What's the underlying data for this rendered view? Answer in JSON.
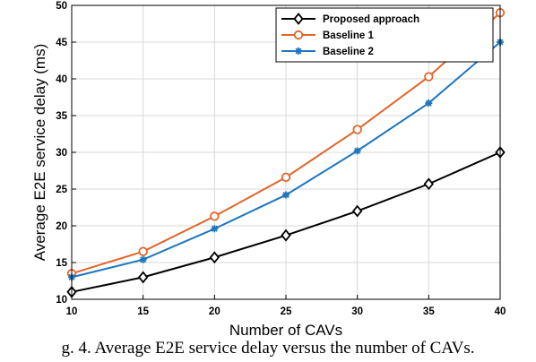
{
  "chart_data": {
    "type": "line",
    "xlabel": "Number of CAVs",
    "ylabel": "Average E2E service delay (ms)",
    "x": [
      10,
      15,
      20,
      25,
      30,
      35,
      40
    ],
    "xlim": [
      10,
      40
    ],
    "ylim": [
      10,
      50
    ],
    "xticks": [
      10,
      15,
      20,
      25,
      30,
      35,
      40
    ],
    "yticks": [
      10,
      15,
      20,
      25,
      30,
      35,
      40,
      45,
      50
    ],
    "grid": true,
    "legend_position": "top-right",
    "series": [
      {
        "name": "Proposed approach",
        "color": "#000000",
        "marker": "diamond",
        "values": [
          11.0,
          13.0,
          15.7,
          18.7,
          22.0,
          25.7,
          30.0
        ]
      },
      {
        "name": "Baseline 1",
        "color": "#e0662a",
        "marker": "circle",
        "values": [
          13.5,
          16.5,
          21.3,
          26.6,
          33.1,
          40.3,
          49.0
        ]
      },
      {
        "name": "Baseline 2",
        "color": "#1f77bf",
        "marker": "asterisk",
        "values": [
          13.0,
          15.4,
          19.6,
          24.2,
          30.2,
          36.7,
          45.0
        ]
      }
    ]
  },
  "caption": "g. 4.  Average E2E service delay versus the number of CAVs."
}
